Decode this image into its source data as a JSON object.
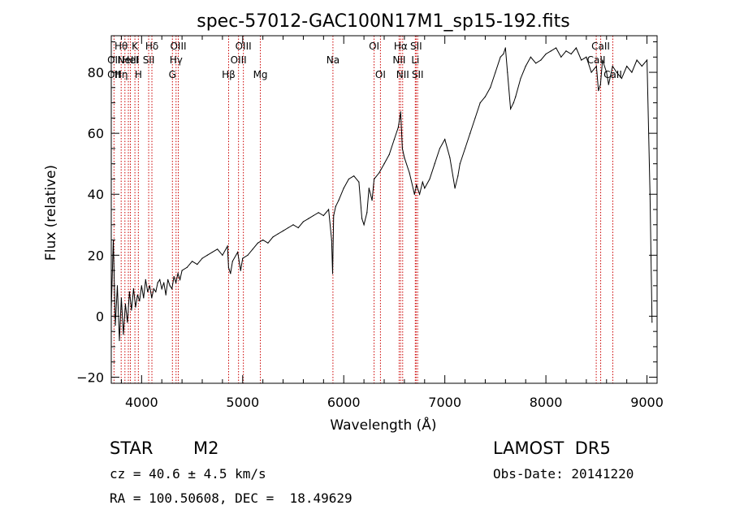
{
  "chart_data": {
    "type": "line",
    "title": "spec-57012-GAC100N17M1_sp15-192.fits",
    "xlabel": "Wavelength (Å)",
    "ylabel": "Flux (relative)",
    "xlim": [
      3700,
      9100
    ],
    "ylim": [
      -22,
      92
    ],
    "xticks": [
      4000,
      5000,
      6000,
      7000,
      8000,
      9000
    ],
    "yticks": [
      -20,
      0,
      20,
      40,
      60,
      80
    ],
    "grid": false,
    "line_color": "#000000",
    "marker_color": "#cc0000",
    "series": [
      {
        "x": [
          3700,
          3720,
          3740,
          3760,
          3780,
          3800,
          3820,
          3840,
          3860,
          3880,
          3900,
          3920,
          3940,
          3960,
          3980,
          4000,
          4020,
          4040,
          4060,
          4080,
          4100,
          4120,
          4140,
          4160,
          4180,
          4200,
          4220,
          4240,
          4260,
          4280,
          4300,
          4320,
          4340,
          4360,
          4380,
          4400,
          4450,
          4500,
          4550,
          4600,
          4650,
          4700,
          4750,
          4800,
          4850,
          4860,
          4880,
          4900,
          4950,
          4980,
          5000,
          5050,
          5100,
          5150,
          5200,
          5250,
          5300,
          5350,
          5400,
          5450,
          5500,
          5550,
          5600,
          5650,
          5700,
          5750,
          5800,
          5850,
          5880,
          5890,
          5900,
          5920,
          5950,
          6000,
          6050,
          6100,
          6150,
          6180,
          6200,
          6230,
          6250,
          6280,
          6300,
          6350,
          6400,
          6450,
          6500,
          6540,
          6563,
          6580,
          6600,
          6650,
          6700,
          6720,
          6750,
          6780,
          6800,
          6850,
          6900,
          6950,
          7000,
          7050,
          7100,
          7130,
          7150,
          7200,
          7250,
          7300,
          7350,
          7400,
          7450,
          7500,
          7550,
          7580,
          7600,
          7620,
          7650,
          7680,
          7700,
          7750,
          7800,
          7850,
          7900,
          7950,
          8000,
          8050,
          8100,
          8150,
          8200,
          8250,
          8300,
          8350,
          8400,
          8450,
          8500,
          8520,
          8540,
          8560,
          8600,
          8620,
          8660,
          8700,
          8750,
          8800,
          8850,
          8900,
          8950,
          9000,
          9030,
          9050
        ],
        "y": [
          2,
          25,
          -3,
          10,
          -8,
          6,
          -6,
          4,
          -2,
          8,
          2,
          9,
          3,
          7,
          5,
          10,
          6,
          12,
          8,
          10,
          6,
          9,
          8,
          11,
          12,
          9,
          11,
          7,
          12,
          10,
          9,
          13,
          11,
          14,
          12,
          15,
          16,
          18,
          17,
          19,
          20,
          21,
          22,
          20,
          23,
          16,
          14,
          18,
          21,
          15,
          19,
          20,
          22,
          24,
          25,
          24,
          26,
          27,
          28,
          29,
          30,
          29,
          31,
          32,
          33,
          34,
          33,
          35,
          25,
          14,
          33,
          36,
          38,
          42,
          45,
          46,
          44,
          32,
          30,
          34,
          42,
          38,
          45,
          47,
          50,
          53,
          58,
          62,
          67,
          55,
          52,
          47,
          40,
          43,
          40,
          44,
          42,
          45,
          50,
          55,
          58,
          52,
          42,
          46,
          50,
          55,
          60,
          65,
          70,
          72,
          75,
          80,
          85,
          86,
          88,
          80,
          68,
          70,
          72,
          78,
          82,
          85,
          83,
          84,
          86,
          87,
          88,
          85,
          87,
          86,
          88,
          84,
          85,
          80,
          82,
          74,
          76,
          84,
          80,
          76,
          82,
          80,
          78,
          82,
          80,
          84,
          82,
          84,
          40,
          -2
        ]
      }
    ],
    "line_markers": [
      {
        "x": 3727,
        "upper": "",
        "middle": "OII",
        "lower": "OII"
      },
      {
        "x": 3798,
        "upper": "Hθ",
        "middle": "",
        "lower": "Hη"
      },
      {
        "x": 3835,
        "upper": "",
        "middle": "",
        "lower": ""
      },
      {
        "x": 3869,
        "upper": "",
        "middle": "NeIII",
        "lower": ""
      },
      {
        "x": 3889,
        "upper": "",
        "middle": "HeI",
        "lower": ""
      },
      {
        "x": 3934,
        "upper": "K",
        "middle": "",
        "lower": ""
      },
      {
        "x": 3968,
        "upper": "",
        "middle": "",
        "lower": "H"
      },
      {
        "x": 4070,
        "upper": "",
        "middle": "SII",
        "lower": ""
      },
      {
        "x": 4102,
        "upper": "Hδ",
        "middle": "",
        "lower": ""
      },
      {
        "x": 4305,
        "upper": "",
        "middle": "",
        "lower": "G"
      },
      {
        "x": 4341,
        "upper": "",
        "middle": "Hγ",
        "lower": ""
      },
      {
        "x": 4363,
        "upper": "OIII",
        "middle": "",
        "lower": ""
      },
      {
        "x": 4861,
        "upper": "",
        "middle": "",
        "lower": "Hβ"
      },
      {
        "x": 4959,
        "upper": "",
        "middle": "OIII",
        "lower": ""
      },
      {
        "x": 5007,
        "upper": "OIII",
        "middle": "",
        "lower": ""
      },
      {
        "x": 5175,
        "upper": "",
        "middle": "",
        "lower": "Mg"
      },
      {
        "x": 5893,
        "upper": "",
        "middle": "Na",
        "lower": ""
      },
      {
        "x": 6300,
        "upper": "OI",
        "middle": "",
        "lower": ""
      },
      {
        "x": 6363,
        "upper": "",
        "middle": "",
        "lower": "OI"
      },
      {
        "x": 6548,
        "upper": "",
        "middle": "NII",
        "lower": ""
      },
      {
        "x": 6563,
        "upper": "Hα",
        "middle": "",
        "lower": ""
      },
      {
        "x": 6583,
        "upper": "",
        "middle": "",
        "lower": "NII"
      },
      {
        "x": 6708,
        "upper": "",
        "middle": "Li",
        "lower": ""
      },
      {
        "x": 6716,
        "upper": "SII",
        "middle": "",
        "lower": ""
      },
      {
        "x": 6731,
        "upper": "",
        "middle": "",
        "lower": "SII"
      },
      {
        "x": 8498,
        "upper": "",
        "middle": "CaII",
        "lower": ""
      },
      {
        "x": 8542,
        "upper": "CaII",
        "middle": "",
        "lower": ""
      },
      {
        "x": 8662,
        "upper": "",
        "middle": "",
        "lower": "CaII"
      }
    ]
  },
  "info": {
    "class": "STAR",
    "subclass": "M2",
    "survey": "LAMOST  DR5",
    "cz": "cz = 40.6 ± 4.5 km/s",
    "obs_date": "Obs-Date: 20141220",
    "coords": "RA = 100.50608, DEC =  18.49629"
  }
}
